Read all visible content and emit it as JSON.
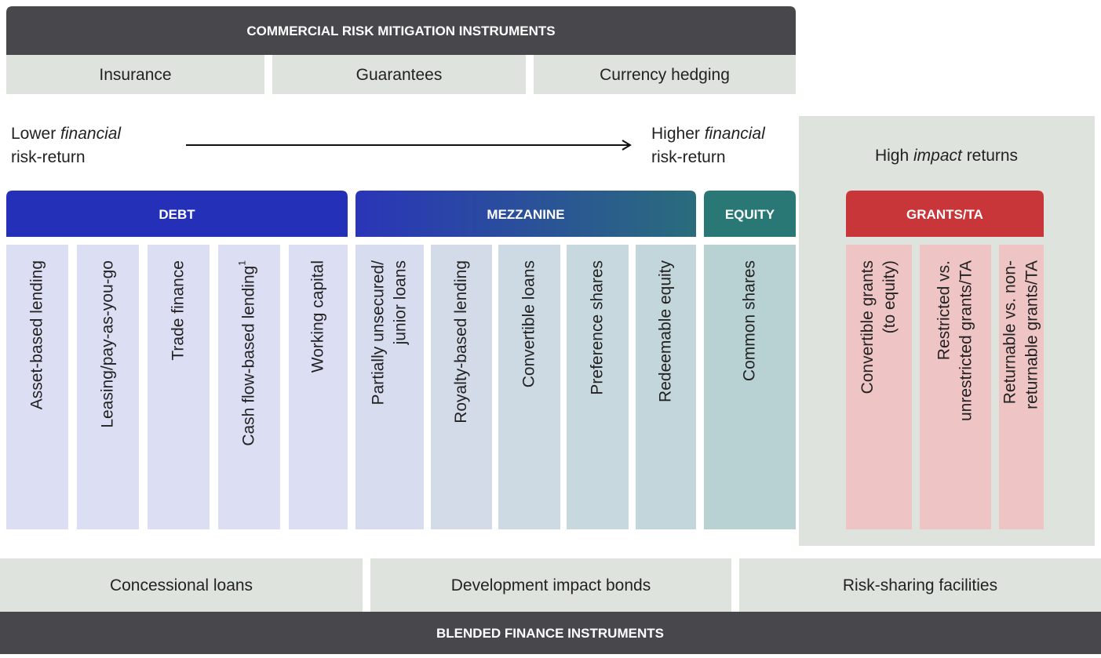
{
  "top": {
    "title": "COMMERCIAL RISK MITIGATION INSTRUMENTS",
    "items": [
      "Insurance",
      "Guarantees",
      "Currency hedging"
    ]
  },
  "axis": {
    "lower": {
      "word": "Lower",
      "emph": "financial",
      "line2": "risk-return"
    },
    "higher": {
      "word": "Higher",
      "emph": "financial",
      "line2": "risk-return"
    }
  },
  "impact": {
    "before": "High",
    "emph": "impact",
    "after": "returns"
  },
  "groups": [
    {
      "title": "DEBT",
      "items": [
        {
          "lines": [
            "Asset-based lending"
          ]
        },
        {
          "lines": [
            "Leasing/pay-as-you-go"
          ]
        },
        {
          "lines": [
            "Trade finance"
          ]
        },
        {
          "lines": [
            "Cash flow-based lending"
          ],
          "note": "1"
        },
        {
          "lines": [
            "Working capital"
          ]
        }
      ]
    },
    {
      "title": "MEZZANINE",
      "items": [
        {
          "lines": [
            "Partially unsecured/",
            "junior loans"
          ]
        },
        {
          "lines": [
            "Royalty-based lending"
          ]
        },
        {
          "lines": [
            "Convertible loans"
          ]
        },
        {
          "lines": [
            "Preference shares"
          ]
        },
        {
          "lines": [
            "Redeemable equity"
          ]
        }
      ]
    },
    {
      "title": "EQUITY",
      "items": [
        {
          "lines": [
            "Common shares"
          ]
        }
      ]
    },
    {
      "title": "GRANTS/TA",
      "items": [
        {
          "lines": [
            "Convertible grants",
            "(to equity)"
          ]
        },
        {
          "lines": [
            "Restricted vs.",
            "unrestricted grants/TA"
          ]
        },
        {
          "lines": [
            "Returnable vs. non-",
            "returnable grants/TA"
          ]
        }
      ]
    }
  ],
  "bottom": {
    "items": [
      "Concessional loans",
      "Development impact bonds",
      "Risk-sharing facilities"
    ],
    "title": "BLENDED FINANCE INSTRUMENTS"
  }
}
